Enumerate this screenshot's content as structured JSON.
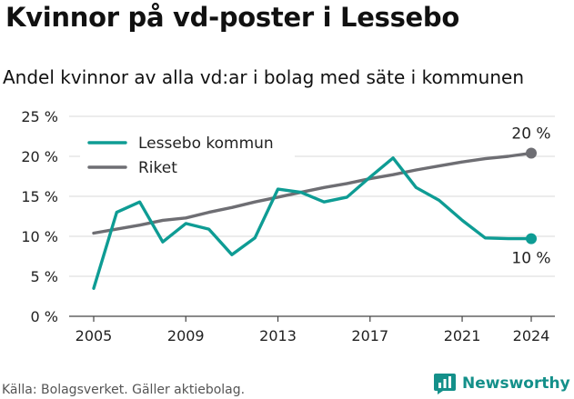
{
  "header": {
    "title": "Kvinnor på vd-poster i Lessebo",
    "subtitle": "Andel kvinnor av alla vd:ar i bolag med säte i kommunen"
  },
  "footer": {
    "source": "Källa: Bolagsverket. Gäller aktiebolag.",
    "brand": "Newsworthy",
    "brand_icon": "newsworthy-logo-icon"
  },
  "colors": {
    "lessebo": "#0e9c94",
    "riket": "#6e6e73",
    "grid": "#d9d9d9",
    "brand": "#14908a"
  },
  "chart_data": {
    "type": "line",
    "title": "Kvinnor på vd-poster i Lessebo",
    "subtitle": "Andel kvinnor av alla vd:ar i bolag med säte i kommunen",
    "x": [
      2005,
      2006,
      2007,
      2008,
      2009,
      2010,
      2011,
      2012,
      2013,
      2014,
      2015,
      2016,
      2017,
      2018,
      2019,
      2020,
      2021,
      2022,
      2023,
      2024
    ],
    "series": [
      {
        "name": "Lessebo kommun",
        "values": [
          3.5,
          13.0,
          14.3,
          9.3,
          11.6,
          10.9,
          7.7,
          9.8,
          15.9,
          15.5,
          14.3,
          14.9,
          17.4,
          19.8,
          16.1,
          14.5,
          12.0,
          9.8,
          9.7,
          9.7
        ]
      },
      {
        "name": "Riket",
        "values": [
          10.4,
          10.9,
          11.4,
          12.0,
          12.3,
          13.0,
          13.6,
          14.3,
          14.9,
          15.5,
          16.1,
          16.6,
          17.2,
          17.7,
          18.3,
          18.8,
          19.3,
          19.7,
          20.0,
          20.4
        ]
      }
    ],
    "end_labels": [
      "20 %",
      "10 %"
    ],
    "ylim": [
      0,
      25
    ],
    "yticks": [
      0,
      5,
      10,
      15,
      20,
      25
    ],
    "ytick_labels": [
      "0 %",
      "5 %",
      "10 %",
      "15 %",
      "20 %",
      "25 %"
    ],
    "xticks": [
      2005,
      2009,
      2013,
      2017,
      2021,
      2024
    ],
    "xtick_labels": [
      "2005",
      "2009",
      "2013",
      "2017",
      "2021",
      "2024"
    ],
    "grid": true,
    "legend": "top-left"
  }
}
